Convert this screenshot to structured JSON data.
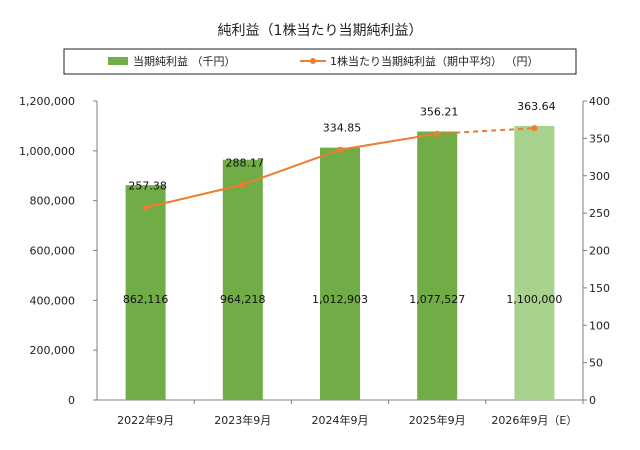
{
  "chart_data": {
    "type": "bar+line",
    "title": "純利益（1株当たり当期純利益）",
    "categories": [
      "2022年9月",
      "2023年9月",
      "2024年9月",
      "2025年9月",
      "2026年9月（E）"
    ],
    "series": [
      {
        "name": "当期純利益 （千円）",
        "type": "bar",
        "axis": "left",
        "values": [
          862116,
          964218,
          1012903,
          1077527,
          1100000
        ],
        "labels": [
          "862,116",
          "964,218",
          "1,012,903",
          "1,077,527",
          "1,100,000"
        ],
        "estimate_index": 4
      },
      {
        "name": "1株当たり当期純利益（期中平均） （円）",
        "type": "line",
        "axis": "right",
        "values": [
          257.38,
          288.17,
          334.85,
          356.21,
          363.64
        ],
        "labels": [
          "257.38",
          "288.17",
          "334.85",
          "356.21",
          "363.64"
        ],
        "dashed_from_index": 3
      }
    ],
    "y_left": {
      "min": 0,
      "max": 1200000,
      "ticks": [
        "0",
        "200,000",
        "400,000",
        "600,000",
        "800,000",
        "1,000,000",
        "1,200,000"
      ]
    },
    "y_right": {
      "min": 0,
      "max": 400,
      "ticks": [
        "0",
        "50",
        "100",
        "150",
        "200",
        "250",
        "300",
        "350",
        "400"
      ]
    },
    "legend_position": "top",
    "colors": {
      "bar": "#70ad47",
      "bar_estimate": "#a9d18e",
      "line": "#ed7d31",
      "axis": "#7f7f7f"
    }
  }
}
